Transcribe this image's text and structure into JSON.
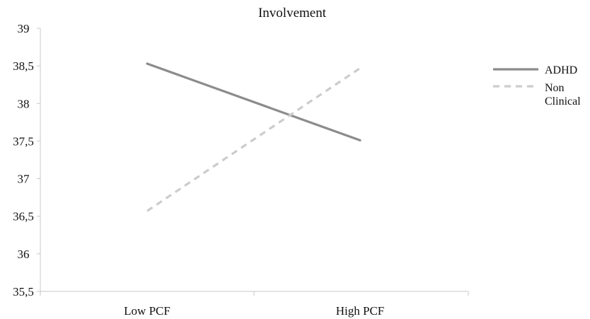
{
  "chart_data": {
    "type": "line",
    "title": "Involvement",
    "xlabel": "",
    "ylabel": "",
    "categories": [
      "Low PCF",
      "High PCF"
    ],
    "ylim": [
      35.5,
      39
    ],
    "yticks": [
      "39",
      "38,5",
      "38",
      "37,5",
      "37",
      "36,5",
      "36",
      "35,5"
    ],
    "ytick_values": [
      39,
      38.5,
      38,
      37.5,
      37,
      36.5,
      36,
      35.5
    ],
    "grid": false,
    "legend": "right",
    "series": [
      {
        "name": "ADHD",
        "values": [
          38.53,
          37.51
        ],
        "color": "#8c8c8c",
        "style": "solid"
      },
      {
        "name_lines": [
          "Non",
          "Clinical"
        ],
        "values": [
          36.57,
          38.47
        ],
        "color": "#cccccc",
        "style": "dashed"
      }
    ]
  }
}
